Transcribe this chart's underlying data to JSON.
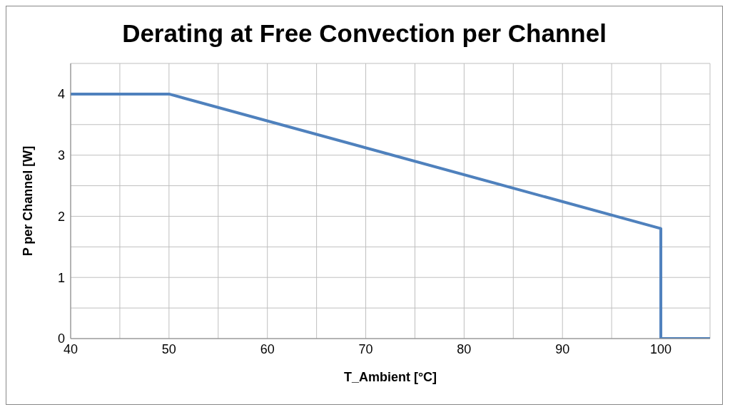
{
  "chart_data": {
    "type": "line",
    "title": "Derating at Free Convection per Channel",
    "xlabel": "T_Ambient [°C]",
    "ylabel": "P per Channel [W]",
    "x": [
      40,
      50,
      100,
      100,
      105
    ],
    "series": [
      {
        "color": "#4f81bd",
        "values": [
          4,
          4,
          1.8,
          0,
          0
        ]
      }
    ],
    "xlim": [
      40,
      105
    ],
    "xticks": [
      40,
      {
        "value": 45,
        "label": null
      },
      50,
      {
        "value": 55,
        "label": null
      },
      60,
      {
        "value": 65,
        "label": null
      },
      70,
      {
        "value": 75,
        "label": null
      },
      80,
      {
        "value": 85,
        "label": null
      },
      90,
      {
        "value": 95,
        "label": null
      },
      100,
      {
        "value": 105,
        "label": null
      }
    ],
    "ylim": [
      0,
      4.5
    ],
    "yticks": [
      0,
      {
        "value": 0.5,
        "label": null
      },
      1,
      {
        "value": 1.5,
        "label": null
      },
      2,
      {
        "value": 2.5,
        "label": null
      },
      3,
      {
        "value": 3.5,
        "label": null
      },
      4,
      {
        "value": 4.5,
        "label": null
      }
    ],
    "grid": true,
    "marker": "none",
    "line_style": "solid"
  }
}
